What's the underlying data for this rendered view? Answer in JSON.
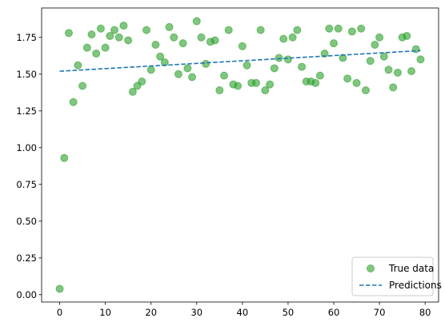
{
  "chart_data": {
    "type": "scatter",
    "title": "",
    "xlabel": "",
    "ylabel": "",
    "xlim": [
      -3.95,
      82.95
    ],
    "ylim": [
      -0.05,
      1.95
    ],
    "x_ticks": [
      0,
      10,
      20,
      30,
      40,
      50,
      60,
      70,
      80
    ],
    "y_ticks": [
      0.0,
      0.25,
      0.5,
      0.75,
      1.0,
      1.25,
      1.5,
      1.75
    ],
    "x_tick_labels": [
      "0",
      "10",
      "20",
      "30",
      "40",
      "50",
      "60",
      "70",
      "80"
    ],
    "y_tick_labels": [
      "0.00",
      "0.25",
      "0.50",
      "0.75",
      "1.00",
      "1.25",
      "1.50",
      "1.75"
    ],
    "grid": false,
    "legend_position": "lower-right",
    "series": [
      {
        "name": "True data",
        "kind": "scatter",
        "color": "#2ca02c",
        "x": [
          0,
          1,
          2,
          3,
          4,
          5,
          6,
          7,
          8,
          9,
          10,
          11,
          12,
          13,
          14,
          15,
          16,
          17,
          18,
          19,
          20,
          21,
          22,
          23,
          24,
          25,
          26,
          27,
          28,
          29,
          30,
          31,
          32,
          33,
          34,
          35,
          36,
          37,
          38,
          39,
          40,
          41,
          42,
          43,
          44,
          45,
          46,
          47,
          48,
          49,
          50,
          51,
          52,
          53,
          54,
          55,
          56,
          57,
          58,
          59,
          60,
          61,
          62,
          63,
          64,
          65,
          66,
          67,
          68,
          69,
          70,
          71,
          72,
          73,
          74,
          75,
          76,
          77,
          78,
          79
        ],
        "y": [
          0.04,
          0.93,
          1.78,
          1.31,
          1.56,
          1.42,
          1.68,
          1.77,
          1.64,
          1.81,
          1.68,
          1.76,
          1.8,
          1.75,
          1.83,
          1.73,
          1.38,
          1.42,
          1.45,
          1.8,
          1.53,
          1.7,
          1.62,
          1.58,
          1.82,
          1.75,
          1.5,
          1.71,
          1.54,
          1.48,
          1.86,
          1.75,
          1.57,
          1.72,
          1.73,
          1.39,
          1.49,
          1.8,
          1.43,
          1.42,
          1.69,
          1.56,
          1.44,
          1.44,
          1.8,
          1.39,
          1.43,
          1.54,
          1.61,
          1.74,
          1.6,
          1.75,
          1.8,
          1.55,
          1.45,
          1.45,
          1.44,
          1.49,
          1.64,
          1.81,
          1.71,
          1.81,
          1.61,
          1.47,
          1.79,
          1.44,
          1.81,
          1.39,
          1.59,
          1.7,
          1.75,
          1.62,
          1.53,
          1.41,
          1.51,
          1.75,
          1.76,
          1.52,
          1.67,
          1.6
        ]
      },
      {
        "name": "Predictions",
        "kind": "line",
        "style": "dashed",
        "color": "#1f77b4",
        "x": [
          0,
          79
        ],
        "y": [
          1.52,
          1.66
        ]
      }
    ]
  }
}
